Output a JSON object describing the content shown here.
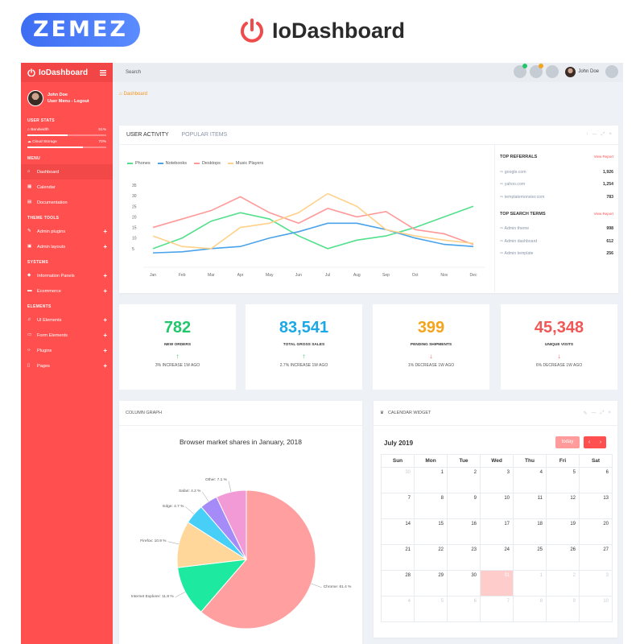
{
  "banner": {
    "brand": "ZEMEZ",
    "title": "IoDashboard"
  },
  "sidebar": {
    "logo": "IoDashboard",
    "user": {
      "name": "John Doe",
      "links": "User Menu - Logout"
    },
    "user_stats_title": "USER STATS",
    "stats": [
      {
        "label": "Bandwidth",
        "value": "51%",
        "fraction": 0.51
      },
      {
        "label": "Cloud Storage",
        "value": "70%",
        "fraction": 0.7
      }
    ],
    "menu_title": "MENU",
    "menu": [
      "Dashboard",
      "Calendar",
      "Documentation"
    ],
    "theme_tools_title": "THEME TOOLS",
    "theme_tools": [
      "Admin plugins",
      "Admin layouts"
    ],
    "systems_title": "SYSTEMS",
    "systems": [
      "Information Panels",
      "Ecommerce"
    ],
    "elements_title": "ELEMENTS",
    "elements": [
      "UI Elements",
      "Form Elements",
      "Plugins",
      "Pages"
    ]
  },
  "topbar": {
    "search_placeholder": "Search",
    "user_name": "John Doe"
  },
  "breadcrumb": "Dashboard",
  "activity": {
    "tabs": [
      "USER ACTIVITY",
      "POPULAR ITEMS"
    ],
    "top_referrals_title": "TOP REFERRALS",
    "view_report": "View Report",
    "referrals": [
      {
        "site": "google.com",
        "value": "1,926"
      },
      {
        "site": "yahoo.com",
        "value": "1,254"
      },
      {
        "site": "templatemonster.com",
        "value": "783"
      }
    ],
    "top_search_title": "TOP SEARCH TERMS",
    "search_terms": [
      {
        "term": "Admin theme",
        "value": "998"
      },
      {
        "term": "Admin dashboard",
        "value": "612"
      },
      {
        "term": "Admin template",
        "value": "256"
      }
    ]
  },
  "stats_cards": [
    {
      "value": "782",
      "label": "NEW ORDERS",
      "arrow": "↑",
      "sub": "3% INCREASE 1W AGO",
      "color": "#22c76b",
      "arrow_color": "#22c76b"
    },
    {
      "value": "83,541",
      "label": "TOTAL GROSS SALES",
      "arrow": "↑",
      "sub": "2.7% INCREASE 1W AGO",
      "color": "#1ba8e6",
      "arrow_color": "#22c76b"
    },
    {
      "value": "399",
      "label": "PENDING SHIPMENTS",
      "arrow": "↓",
      "sub": "1% DECREASE 1W AGO",
      "color": "#f5a31a",
      "arrow_color": "#ff4f4f"
    },
    {
      "value": "45,348",
      "label": "UNIQUE VISITS",
      "arrow": "↓",
      "sub": "6% DECREASE 1W AGO",
      "color": "#f25757",
      "arrow_color": "#ff4f4f"
    }
  ],
  "column_graph": {
    "title": "COLUMN GRAPH"
  },
  "calendar": {
    "title": "CALENDAR WIDGET",
    "month": "July 2019",
    "today_label": "today",
    "days": [
      "Sun",
      "Mon",
      "Tue",
      "Wed",
      "Thu",
      "Fri",
      "Sat"
    ],
    "weeks": [
      [
        "30",
        "1",
        "2",
        "3",
        "4",
        "5",
        "6"
      ],
      [
        "7",
        "8",
        "9",
        "10",
        "11",
        "12",
        "13"
      ],
      [
        "14",
        "15",
        "16",
        "17",
        "18",
        "19",
        "20"
      ],
      [
        "21",
        "22",
        "23",
        "24",
        "25",
        "26",
        "27"
      ],
      [
        "28",
        "29",
        "30",
        "31",
        "1",
        "2",
        "3"
      ],
      [
        "4",
        "5",
        "6",
        "7",
        "8",
        "9",
        "10"
      ]
    ]
  },
  "chart_data": [
    {
      "type": "line",
      "x": [
        "Jan",
        "Feb",
        "Mar",
        "Apr",
        "May",
        "Jun",
        "Jul",
        "Aug",
        "Sep",
        "Oct",
        "Nov",
        "Dec"
      ],
      "ylim": [
        0,
        35
      ],
      "yticks": [
        5,
        10,
        15,
        20,
        25,
        30,
        35
      ],
      "legend_position": "top-left",
      "series": [
        {
          "name": "Phones",
          "color": "#53e08c",
          "values": [
            5,
            10,
            18,
            22,
            19,
            11,
            5,
            9,
            11,
            15,
            20,
            25
          ]
        },
        {
          "name": "Notebooks",
          "color": "#4aa3ea",
          "values": [
            3,
            3.5,
            5,
            6,
            10,
            13,
            17,
            17,
            14,
            10,
            7,
            6
          ]
        },
        {
          "name": "Desktops",
          "color": "#ff9999",
          "values": [
            15,
            19,
            23,
            29.5,
            22,
            17,
            24,
            20,
            22.5,
            14,
            12,
            7
          ]
        },
        {
          "name": "Music Players",
          "color": "#ffd18a",
          "values": [
            11,
            6,
            5,
            15,
            17,
            22,
            31,
            25,
            14,
            11,
            9,
            7.5
          ]
        }
      ]
    },
    {
      "type": "pie",
      "title": "Browser market shares in January, 2018",
      "slices": [
        {
          "label": "Chrome",
          "value": 61.4,
          "display": "Chrome: 61.4 %",
          "color": "#ff9f9f"
        },
        {
          "label": "Internet Explorer",
          "value": 11.8,
          "display": "Internet Explorer: 11.8 %",
          "color": "#1de9a1"
        },
        {
          "label": "Firefox",
          "value": 10.9,
          "display": "Firefox: 10.9 %",
          "color": "#ffd79a"
        },
        {
          "label": "Edge",
          "value": 4.7,
          "display": "Edge: 4.7 %",
          "color": "#48cff8"
        },
        {
          "label": "Safari",
          "value": 4.2,
          "display": "Safari: 4.2 %",
          "color": "#a48bf7"
        },
        {
          "label": "Other",
          "value": 7.1,
          "display": "Other: 7.1 %",
          "color": "#f19ad6"
        }
      ]
    }
  ]
}
